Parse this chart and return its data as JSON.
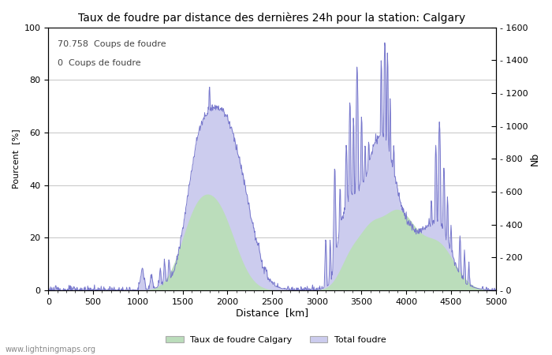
{
  "title": "Taux de foudre par distance des dernières 24h pour la station: Calgary",
  "xlabel": "Distance  [km]",
  "ylabel_left": "Pourcent  [%]",
  "ylabel_right": "Nb",
  "annotation_line1": "70.758  Coups de foudre",
  "annotation_line2": "0  Coups de foudre",
  "legend_green": "Taux de foudre Calgary",
  "legend_blue": "Total foudre",
  "watermark": "www.lightningmaps.org",
  "xlim": [
    0,
    5000
  ],
  "ylim_left": [
    0,
    100
  ],
  "ylim_right": [
    0,
    1600
  ],
  "xticks": [
    0,
    500,
    1000,
    1500,
    2000,
    2500,
    3000,
    3500,
    4000,
    4500,
    5000
  ],
  "yticks_left": [
    0,
    20,
    40,
    60,
    80,
    100
  ],
  "yticks_right": [
    0,
    200,
    400,
    600,
    800,
    1000,
    1200,
    1400,
    1600
  ],
  "color_blue_line": "#7777cc",
  "color_blue_fill": "#ccccee",
  "color_green_fill": "#bbddbb",
  "color_grid": "#bbbbbb",
  "bg_color": "#ffffff",
  "figsize": [
    7.0,
    4.5
  ],
  "dpi": 100
}
